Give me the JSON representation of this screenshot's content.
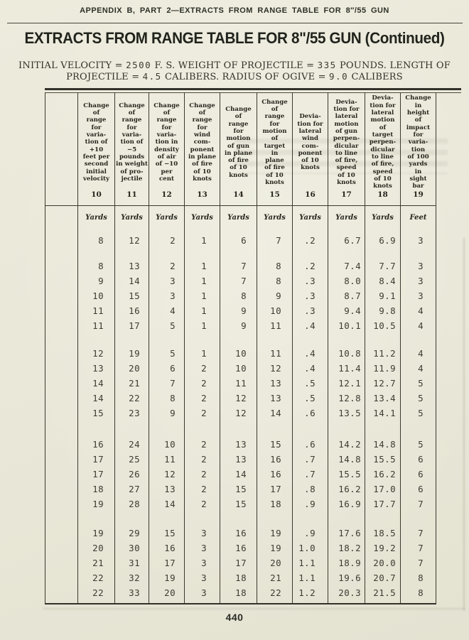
{
  "page": {
    "running_head": "APPENDIX B, PART 2—EXTRACTS FROM RANGE TABLE FOR 8″/55 GUN",
    "title": "EXTRACTS FROM RANGE TABLE FOR 8\"/55 GUN (Continued)",
    "subtitle_line1_segments": [
      {
        "t": "INITIAL VELOCITY = ",
        "s": "serif"
      },
      {
        "t": "2500",
        "s": "mono"
      },
      {
        "t": " F. S. WEIGHT OF PROJECTILE = ",
        "s": "serif"
      },
      {
        "t": "335",
        "s": "mono"
      },
      {
        "t": " POUNDS. LENGTH OF",
        "s": "serif"
      }
    ],
    "subtitle_line2_segments": [
      {
        "t": "PROJECTILE = ",
        "s": "serif"
      },
      {
        "t": "4.5",
        "s": "mono"
      },
      {
        "t": " CALIBERS. RADIUS OF OGIVE = ",
        "s": "serif"
      },
      {
        "t": "9.0",
        "s": "mono"
      },
      {
        "t": " CALIBERS",
        "s": "serif"
      }
    ],
    "page_number": "440"
  },
  "table": {
    "columns": [
      {
        "number": "10",
        "unit": "Yards",
        "header": "Change\nof\nrange\nfor\nvaria-\ntion of\n+10\nfeet per\nsecond\ninitial\nvelocity"
      },
      {
        "number": "11",
        "unit": "Yards",
        "header": "Change\nof\nrange\nfor\nvaria-\ntion of\n−5\npounds\nin weight\nof pro-\njectile"
      },
      {
        "number": "12",
        "unit": "Yards",
        "header": "Change\nof\nrange\nfor\nvaria-\ntion in\ndensity\nof air\nof −10\nper\ncent"
      },
      {
        "number": "13",
        "unit": "Yards",
        "header": "Change\nof\nrange\nfor\nwind\ncom-\nponent\nin plane\nof fire\nof 10\nknots"
      },
      {
        "number": "14",
        "unit": "Yards",
        "header": "Change\nof\nrange\nfor\nmotion\nof gun\nin plane\nof fire\nof 10\nknots"
      },
      {
        "number": "15",
        "unit": "Yards",
        "header": "Change\nof\nrange\nfor\nmotion\nof\ntarget\nin\nplane\nof fire\nof 10\nknots"
      },
      {
        "number": "16",
        "unit": "Yards",
        "header": "Devia-\ntion for\nlateral\nwind\ncom-\nponent\nof 10\nknots"
      },
      {
        "number": "17",
        "unit": "Yards",
        "header": "Devia-\ntion for\nlateral\nmotion\nof gun\nperpen-\ndicular\nto line\nof fire,\nspeed\nof 10\nknots"
      },
      {
        "number": "18",
        "unit": "Yards",
        "header": "Devia-\ntion for\nlateral\nmotion\nof\ntarget\nperpen-\ndicular\nto line\nof fire,\nspeed\nof 10\nknots"
      },
      {
        "number": "19",
        "unit": "Feet",
        "header": "Change\nin\nheight\nof\nimpact\nfor\nvaria-\ntion\nof 100\nyards\nin\nsight\nbar"
      }
    ],
    "groups": [
      [
        [
          "8",
          "12",
          "2",
          "1",
          "6",
          "7",
          ".2",
          "6.7",
          "6.9",
          "3"
        ]
      ],
      [
        [
          "8",
          "13",
          "2",
          "1",
          "7",
          "8",
          ".2",
          "7.4",
          "7.7",
          "3"
        ],
        [
          "9",
          "14",
          "3",
          "1",
          "7",
          "8",
          ".3",
          "8.0",
          "8.4",
          "3"
        ],
        [
          "10",
          "15",
          "3",
          "1",
          "8",
          "9",
          ".3",
          "8.7",
          "9.1",
          "3"
        ],
        [
          "11",
          "16",
          "4",
          "1",
          "9",
          "10",
          ".3",
          "9.4",
          "9.8",
          "4"
        ],
        [
          "11",
          "17",
          "5",
          "1",
          "9",
          "11",
          ".4",
          "10.1",
          "10.5",
          "4"
        ]
      ],
      [
        [
          "12",
          "19",
          "5",
          "1",
          "10",
          "11",
          ".4",
          "10.8",
          "11.2",
          "4"
        ],
        [
          "13",
          "20",
          "6",
          "2",
          "10",
          "12",
          ".4",
          "11.4",
          "11.9",
          "4"
        ],
        [
          "14",
          "21",
          "7",
          "2",
          "11",
          "13",
          ".5",
          "12.1",
          "12.7",
          "5"
        ],
        [
          "14",
          "22",
          "8",
          "2",
          "12",
          "13",
          ".5",
          "12.8",
          "13.4",
          "5"
        ],
        [
          "15",
          "23",
          "9",
          "2",
          "12",
          "14",
          ".6",
          "13.5",
          "14.1",
          "5"
        ]
      ],
      [
        [
          "16",
          "24",
          "10",
          "2",
          "13",
          "15",
          ".6",
          "14.2",
          "14.8",
          "5"
        ],
        [
          "17",
          "25",
          "11",
          "2",
          "13",
          "16",
          ".7",
          "14.8",
          "15.5",
          "6"
        ],
        [
          "17",
          "26",
          "12",
          "2",
          "14",
          "16",
          ".7",
          "15.5",
          "16.2",
          "6"
        ],
        [
          "18",
          "27",
          "13",
          "2",
          "15",
          "17",
          ".8",
          "16.2",
          "17.0",
          "6"
        ],
        [
          "19",
          "28",
          "14",
          "2",
          "15",
          "18",
          ".9",
          "16.9",
          "17.7",
          "7"
        ]
      ],
      [
        [
          "19",
          "29",
          "15",
          "3",
          "16",
          "19",
          ".9",
          "17.6",
          "18.5",
          "7"
        ],
        [
          "20",
          "30",
          "16",
          "3",
          "16",
          "19",
          "1.0",
          "18.2",
          "19.2",
          "7"
        ],
        [
          "21",
          "31",
          "17",
          "3",
          "17",
          "20",
          "1.1",
          "18.9",
          "20.0",
          "7"
        ],
        [
          "22",
          "32",
          "19",
          "3",
          "18",
          "21",
          "1.1",
          "19.6",
          "20.7",
          "8"
        ],
        [
          "22",
          "33",
          "20",
          "3",
          "18",
          "22",
          "1.2",
          "20.3",
          "21.5",
          "8"
        ]
      ]
    ],
    "ink_color": "#3a392e",
    "paper_color": "#e9e7d7"
  }
}
